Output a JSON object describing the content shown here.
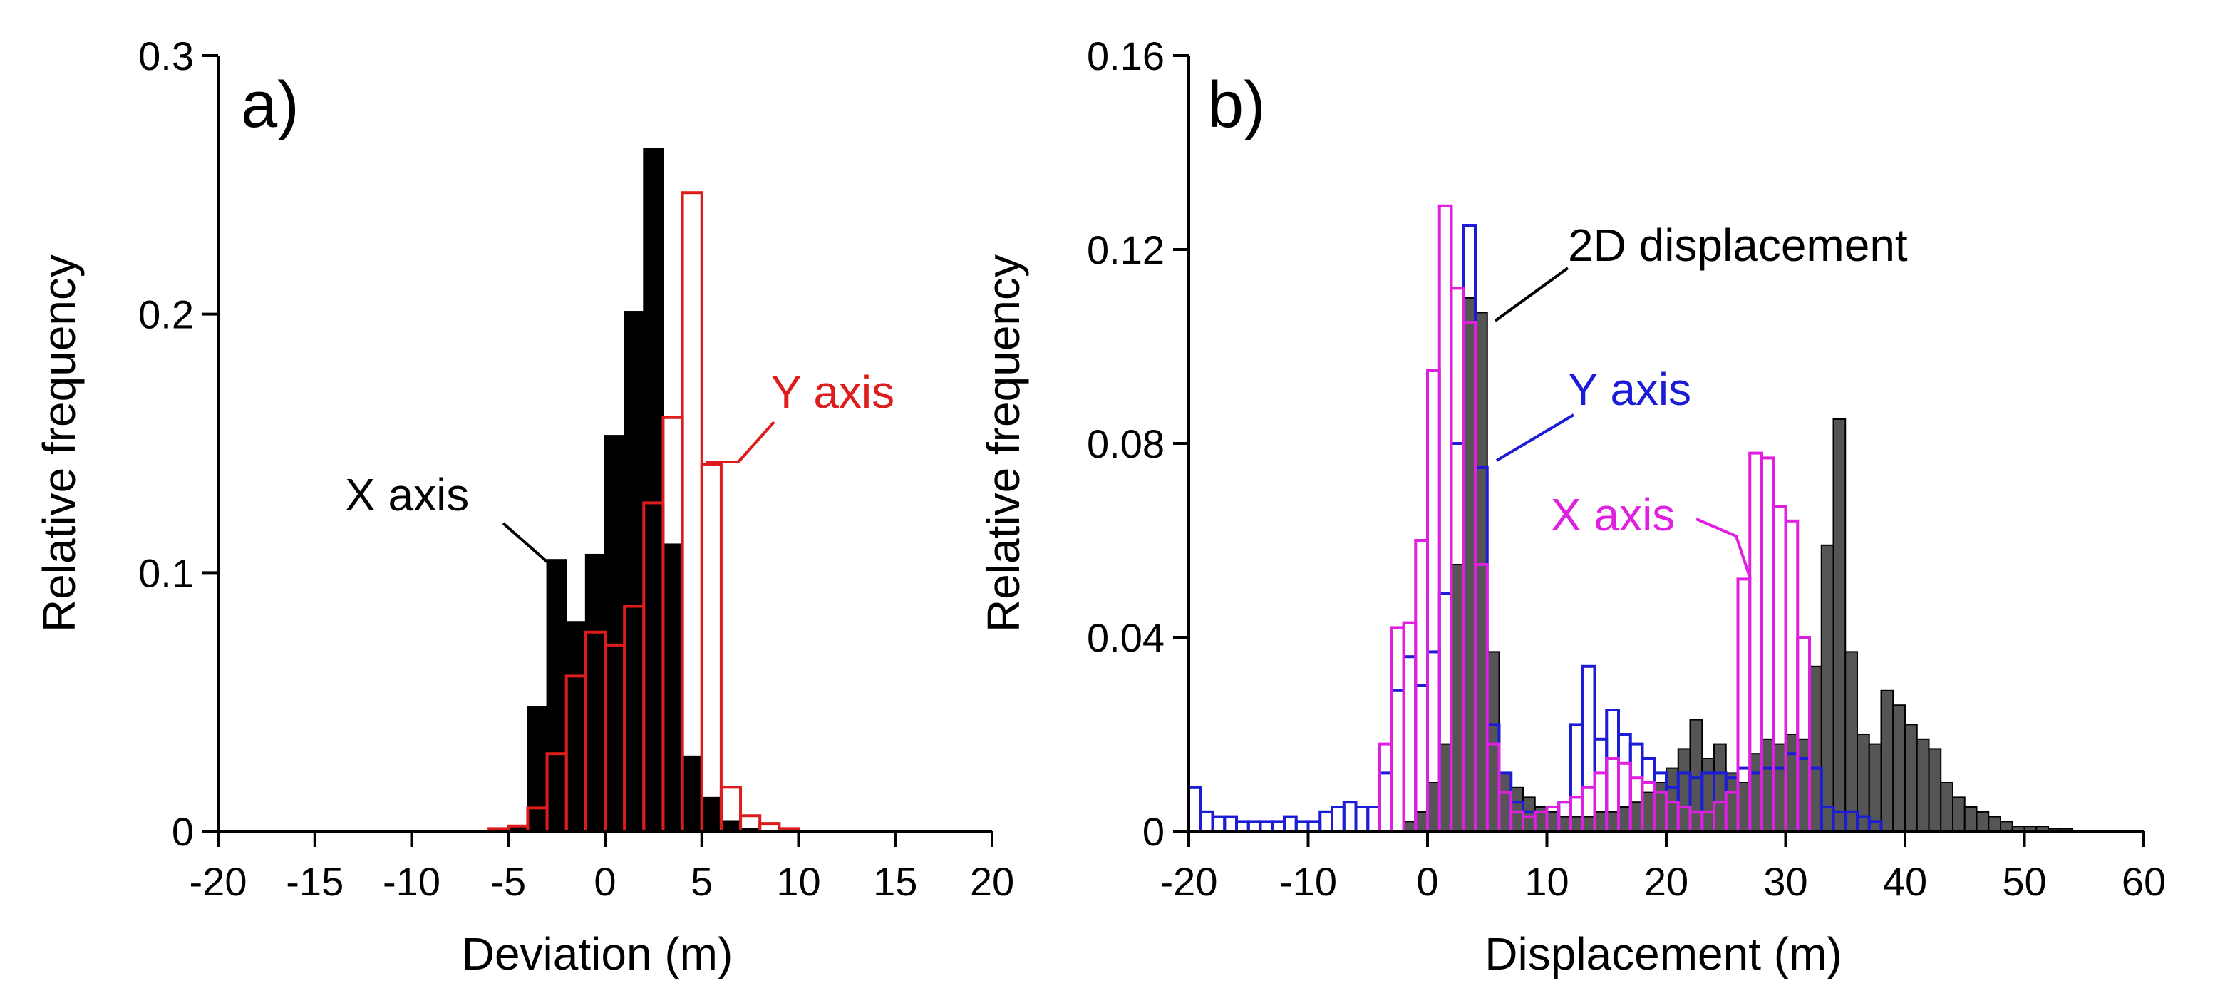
{
  "chart_data": [
    {
      "type": "bar",
      "panel_label": "a)",
      "xlabel": "Deviation (m)",
      "ylabel": "Relative frequency",
      "xlim": [
        -20,
        20
      ],
      "ylim": [
        0,
        0.3
      ],
      "xticks": [
        "-20",
        "-15",
        "-10",
        "-5",
        "0",
        "5",
        "10",
        "15",
        "20"
      ],
      "yticks": [
        "0",
        "0.1",
        "0.2",
        "0.3"
      ],
      "bin_width": 1,
      "grid": false,
      "series": [
        {
          "name": "X axis",
          "style": "filled",
          "color": "#000000",
          "x": [
            -6,
            -5,
            -4,
            -3,
            -2,
            -1,
            0,
            1,
            2,
            3,
            4,
            5,
            6,
            7
          ],
          "values": [
            0.001,
            0.002,
            0.048,
            0.105,
            0.081,
            0.107,
            0.153,
            0.201,
            0.264,
            0.111,
            0.029,
            0.013,
            0.004,
            0.001
          ]
        },
        {
          "name": "Y axis",
          "style": "outline",
          "color": "#dd1c1c",
          "x": [
            -6,
            -5,
            -4,
            -3,
            -2,
            -1,
            0,
            1,
            2,
            3,
            4,
            5,
            6,
            7,
            8,
            9
          ],
          "values": [
            0.001,
            0.002,
            0.009,
            0.03,
            0.06,
            0.077,
            0.072,
            0.087,
            0.127,
            0.16,
            0.247,
            0.142,
            0.017,
            0.006,
            0.003,
            0.001
          ]
        }
      ]
    },
    {
      "type": "bar",
      "panel_label": "b)",
      "xlabel": "Displacement (m)",
      "ylabel": "Relative frequency",
      "xlim": [
        -20,
        60
      ],
      "ylim": [
        0,
        0.16
      ],
      "xticks": [
        "-20",
        "-10",
        "0",
        "10",
        "20",
        "30",
        "40",
        "50",
        "60"
      ],
      "yticks": [
        "0",
        "0.04",
        "0.08",
        "0.12",
        "0.16"
      ],
      "bin_width": 1,
      "grid": false,
      "series": [
        {
          "name": "2D displacement",
          "style": "filled",
          "color": "#555555",
          "x": [
            -2,
            -1,
            0,
            1,
            2,
            3,
            4,
            5,
            6,
            7,
            8,
            9,
            10,
            11,
            12,
            13,
            14,
            15,
            16,
            17,
            18,
            19,
            20,
            21,
            22,
            23,
            24,
            25,
            26,
            27,
            28,
            29,
            30,
            31,
            32,
            33,
            34,
            35,
            36,
            37,
            38,
            39,
            40,
            41,
            42,
            43,
            44,
            45,
            46,
            47,
            48,
            49,
            50,
            51,
            52,
            53
          ],
          "values": [
            0.002,
            0.004,
            0.01,
            0.018,
            0.055,
            0.11,
            0.107,
            0.037,
            0.012,
            0.009,
            0.007,
            0.005,
            0.004,
            0.003,
            0.003,
            0.003,
            0.004,
            0.004,
            0.005,
            0.006,
            0.008,
            0.01,
            0.013,
            0.017,
            0.023,
            0.015,
            0.018,
            0.012,
            0.01,
            0.016,
            0.019,
            0.018,
            0.02,
            0.019,
            0.034,
            0.059,
            0.085,
            0.037,
            0.02,
            0.018,
            0.029,
            0.026,
            0.022,
            0.019,
            0.017,
            0.01,
            0.007,
            0.005,
            0.004,
            0.003,
            0.002,
            0.001,
            0.001,
            0.001,
            0.0005,
            0.0005
          ]
        },
        {
          "name": "Y axis",
          "style": "outline",
          "color": "#1c1cd6",
          "x": [
            -20,
            -19,
            -18,
            -17,
            -16,
            -15,
            -14,
            -13,
            -12,
            -11,
            -10,
            -9,
            -8,
            -7,
            -6,
            -5,
            -4,
            -3,
            -2,
            -1,
            0,
            1,
            2,
            3,
            4,
            5,
            6,
            7,
            8,
            9,
            10,
            11,
            12,
            13,
            14,
            15,
            16,
            17,
            18,
            19,
            20,
            21,
            22,
            23,
            24,
            25,
            26,
            27,
            28,
            29,
            30,
            31,
            32,
            33,
            34,
            35,
            36,
            37
          ],
          "values": [
            0.009,
            0.004,
            0.003,
            0.003,
            0.002,
            0.002,
            0.002,
            0.002,
            0.003,
            0.002,
            0.002,
            0.004,
            0.005,
            0.006,
            0.005,
            0.005,
            0.012,
            0.029,
            0.036,
            0.03,
            0.037,
            0.049,
            0.08,
            0.125,
            0.075,
            0.022,
            0.012,
            0.006,
            0.004,
            0.004,
            0.005,
            0.006,
            0.022,
            0.034,
            0.019,
            0.025,
            0.02,
            0.018,
            0.015,
            0.012,
            0.009,
            0.012,
            0.011,
            0.012,
            0.012,
            0.011,
            0.013,
            0.012,
            0.013,
            0.013,
            0.016,
            0.015,
            0.013,
            0.005,
            0.004,
            0.004,
            0.003,
            0.002
          ]
        },
        {
          "name": "X axis",
          "style": "outline",
          "color": "#e020e0",
          "x": [
            -4,
            -3,
            -2,
            -1,
            0,
            1,
            2,
            3,
            4,
            5,
            6,
            7,
            8,
            9,
            10,
            11,
            12,
            13,
            14,
            15,
            16,
            17,
            18,
            19,
            20,
            21,
            22,
            23,
            24,
            25,
            26,
            27,
            28,
            29,
            30,
            31
          ],
          "values": [
            0.018,
            0.042,
            0.043,
            0.06,
            0.095,
            0.129,
            0.112,
            0.105,
            0.055,
            0.018,
            0.008,
            0.004,
            0.003,
            0.004,
            0.005,
            0.006,
            0.007,
            0.009,
            0.012,
            0.015,
            0.014,
            0.011,
            0.01,
            0.008,
            0.006,
            0.005,
            0.004,
            0.004,
            0.006,
            0.008,
            0.052,
            0.078,
            0.077,
            0.067,
            0.064,
            0.04
          ]
        }
      ]
    }
  ]
}
